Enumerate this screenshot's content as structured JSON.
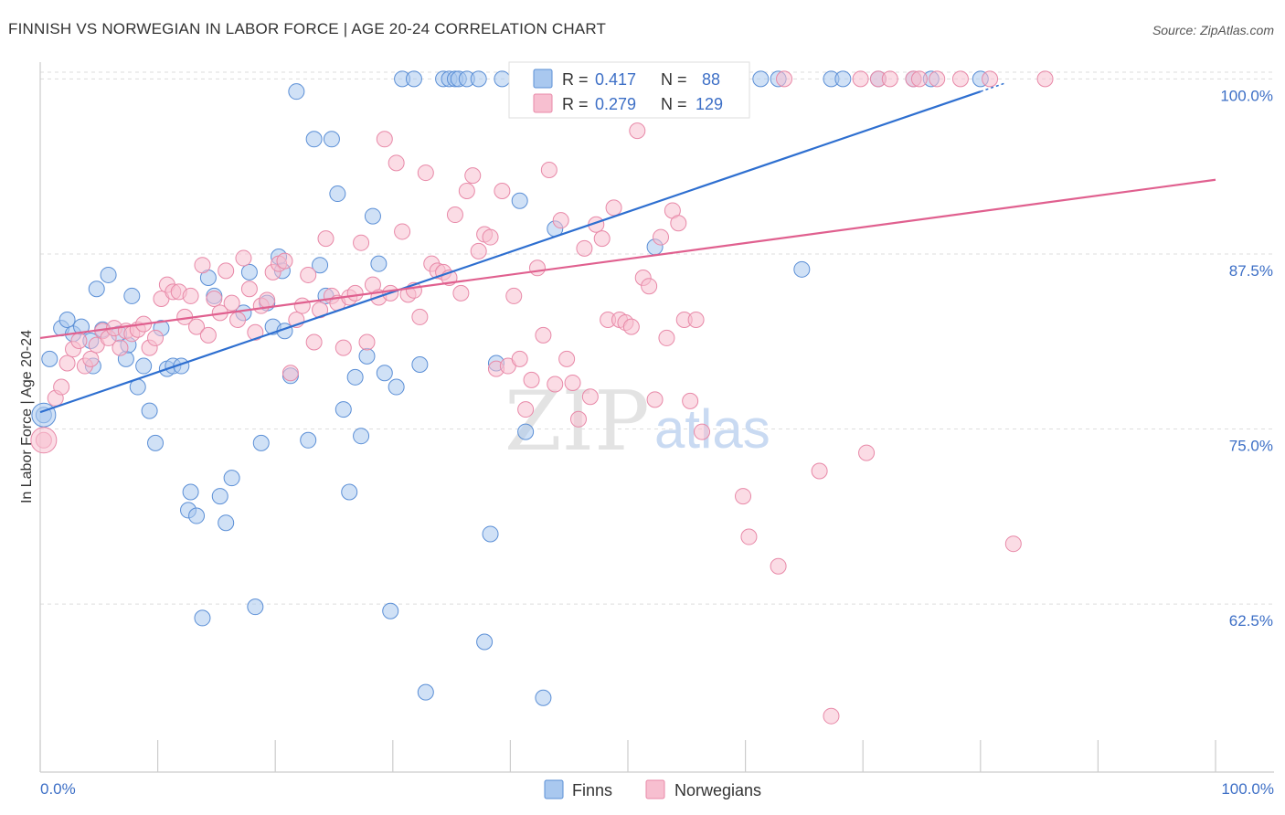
{
  "header": {
    "title": "FINNISH VS NORWEGIAN IN LABOR FORCE | AGE 20-24 CORRELATION CHART",
    "source": "Source: ZipAtlas.com"
  },
  "watermark": {
    "zip": "ZIP",
    "atlas": "atlas"
  },
  "colors": {
    "finns_fill": "#a9c8ef",
    "finns_stroke": "#5b8fd6",
    "finns_line": "#2e6fd0",
    "norwegians_fill": "#f7bfd0",
    "norwegians_stroke": "#e889a8",
    "norwegians_line": "#e0608f",
    "accent_text": "#3d6fc6",
    "grid": "#dddddd"
  },
  "chart_data": {
    "type": "scatter",
    "title": "FINNISH VS NORWEGIAN IN LABOR FORCE | AGE 20-24 CORRELATION CHART",
    "xlabel": "",
    "ylabel": "In Labor Force | Age 20-24",
    "xlim": [
      0,
      100
    ],
    "ylim": [
      50.5,
      101.2
    ],
    "x_tick_labels": [
      "0.0%",
      "100.0%"
    ],
    "y_ticks": [
      62.5,
      75.0,
      87.5,
      100.0
    ],
    "y_tick_labels": [
      "62.5%",
      "75.0%",
      "87.5%",
      "100.0%"
    ],
    "grid": true,
    "legend_position": "top-center",
    "legend": [
      {
        "series": "Finns",
        "r_label": "R =",
        "r_value": "0.417",
        "n_label": "N =",
        "n_value": "88"
      },
      {
        "series": "Norwegians",
        "r_label": "R =",
        "r_value": "0.279",
        "n_label": "N =",
        "n_value": "129"
      }
    ],
    "series": [
      {
        "name": "Finns",
        "trend": {
          "x": [
            0,
            80
          ],
          "y": [
            76.2,
            99.1
          ]
        },
        "points": [
          [
            0.3,
            76
          ],
          [
            0.8,
            80
          ],
          [
            1.8,
            82.2
          ],
          [
            2.3,
            82.8
          ],
          [
            2.8,
            81.8
          ],
          [
            3.5,
            82.3
          ],
          [
            4.3,
            81.3
          ],
          [
            4.5,
            79.5
          ],
          [
            4.8,
            85
          ],
          [
            5.3,
            82.1
          ],
          [
            5.8,
            86
          ],
          [
            6.7,
            81.8
          ],
          [
            7.3,
            80
          ],
          [
            7.5,
            81
          ],
          [
            7.8,
            84.5
          ],
          [
            8.3,
            78
          ],
          [
            8.8,
            79.5
          ],
          [
            9.3,
            76.3
          ],
          [
            9.8,
            74
          ],
          [
            10.3,
            82.2
          ],
          [
            10.8,
            79.3
          ],
          [
            11.3,
            79.5
          ],
          [
            12,
            79.5
          ],
          [
            12.8,
            70.5
          ],
          [
            12.6,
            69.2
          ],
          [
            13.3,
            68.8
          ],
          [
            13.8,
            61.5
          ],
          [
            14.3,
            85.8
          ],
          [
            14.8,
            84.5
          ],
          [
            15.3,
            70.2
          ],
          [
            15.8,
            68.3
          ],
          [
            16.3,
            71.5
          ],
          [
            17.3,
            83.3
          ],
          [
            17.8,
            86.2
          ],
          [
            18.3,
            62.3
          ],
          [
            18.8,
            74
          ],
          [
            19.3,
            84
          ],
          [
            19.8,
            82.3
          ],
          [
            20.3,
            87.3
          ],
          [
            20.6,
            86.3
          ],
          [
            20.8,
            82
          ],
          [
            21.3,
            78.8
          ],
          [
            21.8,
            99.1
          ],
          [
            22.8,
            74.2
          ],
          [
            23.3,
            95.7
          ],
          [
            23.8,
            86.7
          ],
          [
            24.3,
            84.5
          ],
          [
            24.8,
            95.7
          ],
          [
            25.3,
            91.8
          ],
          [
            25.8,
            76.4
          ],
          [
            26.3,
            70.5
          ],
          [
            26.8,
            78.7
          ],
          [
            27.3,
            74.5
          ],
          [
            27.8,
            80.2
          ],
          [
            28.3,
            90.2
          ],
          [
            28.8,
            86.8
          ],
          [
            29.3,
            79
          ],
          [
            29.8,
            62
          ],
          [
            30.3,
            78
          ],
          [
            30.8,
            100
          ],
          [
            31.8,
            100
          ],
          [
            32.8,
            56.2
          ],
          [
            32.3,
            79.6
          ],
          [
            34.3,
            100
          ],
          [
            34.8,
            100
          ],
          [
            35.3,
            100
          ],
          [
            35.6,
            100
          ],
          [
            36.3,
            100
          ],
          [
            37.3,
            100
          ],
          [
            37.8,
            59.8
          ],
          [
            38.3,
            67.5
          ],
          [
            38.8,
            79.7
          ],
          [
            39.3,
            100
          ],
          [
            40.8,
            91.3
          ],
          [
            41.3,
            74.8
          ],
          [
            42.8,
            55.8
          ],
          [
            43.8,
            89.3
          ],
          [
            52.3,
            88
          ],
          [
            54.8,
            100
          ],
          [
            61.3,
            100
          ],
          [
            62.8,
            100
          ],
          [
            67.3,
            100
          ],
          [
            68.3,
            100
          ],
          [
            71.3,
            100
          ],
          [
            74.3,
            100
          ],
          [
            75.8,
            100
          ],
          [
            80,
            100
          ],
          [
            64.8,
            86.4
          ]
        ]
      },
      {
        "name": "Norwegians",
        "trend": {
          "x": [
            0,
            100
          ],
          "y": [
            81.5,
            92.8
          ]
        },
        "points": [
          [
            0.3,
            74.2
          ],
          [
            1.3,
            77.2
          ],
          [
            1.8,
            78
          ],
          [
            2.3,
            79.7
          ],
          [
            2.8,
            80.7
          ],
          [
            3.3,
            81.3
          ],
          [
            3.8,
            79.5
          ],
          [
            4.3,
            80
          ],
          [
            4.8,
            81
          ],
          [
            5.3,
            82
          ],
          [
            5.8,
            81.5
          ],
          [
            6.3,
            82.2
          ],
          [
            6.8,
            80.8
          ],
          [
            7.3,
            82
          ],
          [
            7.8,
            81.8
          ],
          [
            8.3,
            82.1
          ],
          [
            8.8,
            82.5
          ],
          [
            9.3,
            80.8
          ],
          [
            9.8,
            81.5
          ],
          [
            10.3,
            84.3
          ],
          [
            10.8,
            85.3
          ],
          [
            11.3,
            84.8
          ],
          [
            11.8,
            84.8
          ],
          [
            12.3,
            83
          ],
          [
            12.8,
            84.5
          ],
          [
            13.3,
            82.3
          ],
          [
            13.8,
            86.7
          ],
          [
            14.3,
            81.7
          ],
          [
            14.8,
            84.3
          ],
          [
            15.3,
            83.3
          ],
          [
            15.8,
            86.3
          ],
          [
            16.3,
            84
          ],
          [
            16.8,
            82.8
          ],
          [
            17.3,
            87.2
          ],
          [
            17.8,
            85
          ],
          [
            18.3,
            81.9
          ],
          [
            18.8,
            83.8
          ],
          [
            19.3,
            84.2
          ],
          [
            19.8,
            86.2
          ],
          [
            20.3,
            86.8
          ],
          [
            20.8,
            87
          ],
          [
            21.3,
            79
          ],
          [
            21.8,
            82.8
          ],
          [
            22.3,
            83.8
          ],
          [
            22.8,
            86
          ],
          [
            23.3,
            81.2
          ],
          [
            23.8,
            83.5
          ],
          [
            24.3,
            88.6
          ],
          [
            24.8,
            84.5
          ],
          [
            25.3,
            84
          ],
          [
            25.8,
            80.8
          ],
          [
            26.3,
            84.4
          ],
          [
            26.8,
            84.7
          ],
          [
            27.3,
            88.3
          ],
          [
            27.8,
            81.2
          ],
          [
            28.3,
            85.3
          ],
          [
            28.8,
            84.4
          ],
          [
            29.3,
            95.7
          ],
          [
            29.8,
            84.7
          ],
          [
            30.3,
            94
          ],
          [
            30.8,
            89.1
          ],
          [
            31.3,
            84.6
          ],
          [
            31.8,
            84.9
          ],
          [
            32.3,
            83
          ],
          [
            32.8,
            93.3
          ],
          [
            33.3,
            86.8
          ],
          [
            33.8,
            86.3
          ],
          [
            34.3,
            86.2
          ],
          [
            34.8,
            85.8
          ],
          [
            35.3,
            90.3
          ],
          [
            35.8,
            84.7
          ],
          [
            36.3,
            92
          ],
          [
            36.8,
            93.1
          ],
          [
            37.3,
            87.7
          ],
          [
            37.8,
            88.9
          ],
          [
            38.3,
            88.7
          ],
          [
            38.8,
            79.3
          ],
          [
            39.3,
            92
          ],
          [
            39.8,
            79.5
          ],
          [
            40.3,
            84.5
          ],
          [
            40.8,
            80
          ],
          [
            41.3,
            76.4
          ],
          [
            41.8,
            78.5
          ],
          [
            42.3,
            86.5
          ],
          [
            42.8,
            81.7
          ],
          [
            43.3,
            93.5
          ],
          [
            43.8,
            78.2
          ],
          [
            44.3,
            89.9
          ],
          [
            44.8,
            80
          ],
          [
            45.3,
            78.3
          ],
          [
            45.8,
            75.7
          ],
          [
            46.3,
            87.9
          ],
          [
            46.8,
            77.3
          ],
          [
            47.3,
            89.6
          ],
          [
            47.8,
            88.6
          ],
          [
            48.3,
            82.8
          ],
          [
            48.8,
            90.8
          ],
          [
            49.3,
            82.8
          ],
          [
            49.8,
            82.6
          ],
          [
            50.3,
            82.3
          ],
          [
            50.8,
            96.3
          ],
          [
            51.3,
            85.8
          ],
          [
            51.8,
            85.2
          ],
          [
            52.3,
            77.1
          ],
          [
            52.8,
            88.7
          ],
          [
            53.3,
            81.5
          ],
          [
            53.8,
            90.6
          ],
          [
            54.3,
            89.7
          ],
          [
            54.8,
            82.8
          ],
          [
            55.3,
            77
          ],
          [
            55.8,
            82.8
          ],
          [
            56.3,
            74.8
          ],
          [
            59.8,
            70.2
          ],
          [
            60.3,
            67.3
          ],
          [
            62.8,
            65.2
          ],
          [
            63.3,
            100
          ],
          [
            66.3,
            72
          ],
          [
            67.3,
            54.5
          ],
          [
            69.8,
            100
          ],
          [
            70.3,
            73.3
          ],
          [
            71.3,
            100
          ],
          [
            72.3,
            100
          ],
          [
            74.3,
            100
          ],
          [
            76.3,
            100
          ],
          [
            78.3,
            100
          ],
          [
            80.8,
            100
          ],
          [
            82.8,
            66.8
          ],
          [
            85.5,
            100
          ],
          [
            74.8,
            100
          ]
        ]
      }
    ]
  }
}
